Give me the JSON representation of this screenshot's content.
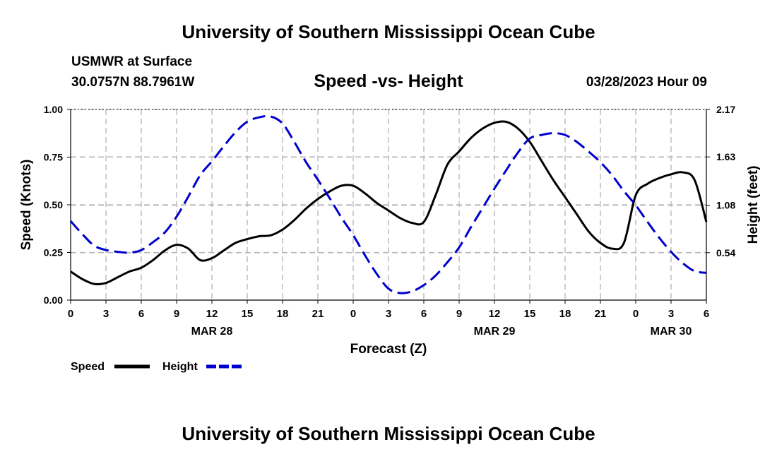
{
  "header": {
    "title": "University of Southern Mississippi Ocean Cube",
    "station": "USMWR at Surface",
    "coords": "30.0757N  88.7961W",
    "datetime": "03/28/2023 Hour 09"
  },
  "footer": {
    "title": "University of Southern Mississippi Ocean Cube"
  },
  "chart_data": {
    "type": "line",
    "title": "Speed -vs- Height",
    "xlabel": "Forecast (Z)",
    "ylabel": "Speed (Knots)",
    "y2label": "Height (feet)",
    "xlim": [
      0,
      54
    ],
    "ylim": [
      0,
      1
    ],
    "y2lim": [
      0,
      2.17
    ],
    "x_ticks": [
      0,
      3,
      6,
      9,
      12,
      15,
      18,
      21,
      24,
      27,
      30,
      33,
      36,
      39,
      42,
      45,
      48,
      51,
      54
    ],
    "x_tick_labels": [
      "0",
      "3",
      "6",
      "9",
      "12",
      "15",
      "18",
      "21",
      "0",
      "3",
      "6",
      "9",
      "12",
      "15",
      "18",
      "21",
      "0",
      "3",
      "6"
    ],
    "day_labels": [
      {
        "x": 12,
        "label": "MAR 28"
      },
      {
        "x": 36,
        "label": "MAR 29"
      },
      {
        "x": 51,
        "label": "MAR 30"
      }
    ],
    "y_ticks": [
      0,
      0.25,
      0.5,
      0.75,
      1.0
    ],
    "y_tick_labels": [
      "0.00",
      "0.25",
      "0.50",
      "0.75",
      "1.00"
    ],
    "y2_ticks": [
      0.54,
      1.08,
      1.63,
      2.17
    ],
    "y2_tick_labels": [
      "0.54",
      "1.08",
      "1.63",
      "2.17"
    ],
    "grid": true,
    "legend": [
      {
        "name": "Speed",
        "color": "#000000",
        "dash": "solid"
      },
      {
        "name": "Height",
        "color": "#0000cc",
        "dash": "dashed"
      }
    ],
    "series": [
      {
        "name": "Speed",
        "axis": "left",
        "color": "#000000",
        "x": [
          0,
          1,
          2,
          3,
          4,
          5,
          6,
          7,
          8,
          9,
          10,
          11,
          12,
          13,
          14,
          15,
          16,
          17,
          18,
          19,
          20,
          21,
          22,
          23,
          24,
          25,
          26,
          27,
          28,
          29,
          30,
          31,
          32,
          33,
          34,
          35,
          36,
          37,
          38,
          39,
          40,
          41,
          42,
          43,
          44,
          45,
          46,
          47,
          48,
          49,
          50,
          51,
          52,
          53,
          54
        ],
        "values": [
          0.15,
          0.11,
          0.085,
          0.09,
          0.12,
          0.15,
          0.17,
          0.21,
          0.26,
          0.29,
          0.27,
          0.21,
          0.22,
          0.26,
          0.3,
          0.32,
          0.335,
          0.34,
          0.37,
          0.42,
          0.48,
          0.53,
          0.57,
          0.6,
          0.6,
          0.56,
          0.51,
          0.47,
          0.43,
          0.405,
          0.41,
          0.55,
          0.71,
          0.78,
          0.85,
          0.9,
          0.93,
          0.935,
          0.9,
          0.83,
          0.73,
          0.63,
          0.54,
          0.45,
          0.36,
          0.3,
          0.27,
          0.3,
          0.55,
          0.61,
          0.64,
          0.66,
          0.67,
          0.63,
          0.41
        ]
      },
      {
        "name": "Height",
        "axis": "right",
        "color": "#0000cc",
        "x": [
          0,
          1,
          2,
          3,
          4,
          5,
          6,
          7,
          8,
          9,
          10,
          11,
          12,
          13,
          14,
          15,
          16,
          17,
          18,
          19,
          20,
          21,
          22,
          23,
          24,
          25,
          26,
          27,
          28,
          29,
          30,
          31,
          32,
          33,
          34,
          35,
          36,
          37,
          38,
          39,
          40,
          41,
          42,
          43,
          44,
          45,
          46,
          47,
          48,
          49,
          50,
          51,
          52,
          53,
          54
        ],
        "values": [
          0.9,
          0.75,
          0.62,
          0.57,
          0.55,
          0.54,
          0.57,
          0.66,
          0.77,
          0.95,
          1.18,
          1.42,
          1.58,
          1.75,
          1.91,
          2.03,
          2.08,
          2.09,
          2.01,
          1.8,
          1.57,
          1.37,
          1.16,
          0.94,
          0.74,
          0.51,
          0.3,
          0.13,
          0.08,
          0.1,
          0.17,
          0.28,
          0.43,
          0.6,
          0.83,
          1.05,
          1.27,
          1.48,
          1.68,
          1.84,
          1.88,
          1.9,
          1.88,
          1.8,
          1.69,
          1.57,
          1.42,
          1.24,
          1.08,
          0.89,
          0.71,
          0.55,
          0.42,
          0.33,
          0.31
        ]
      }
    ]
  }
}
